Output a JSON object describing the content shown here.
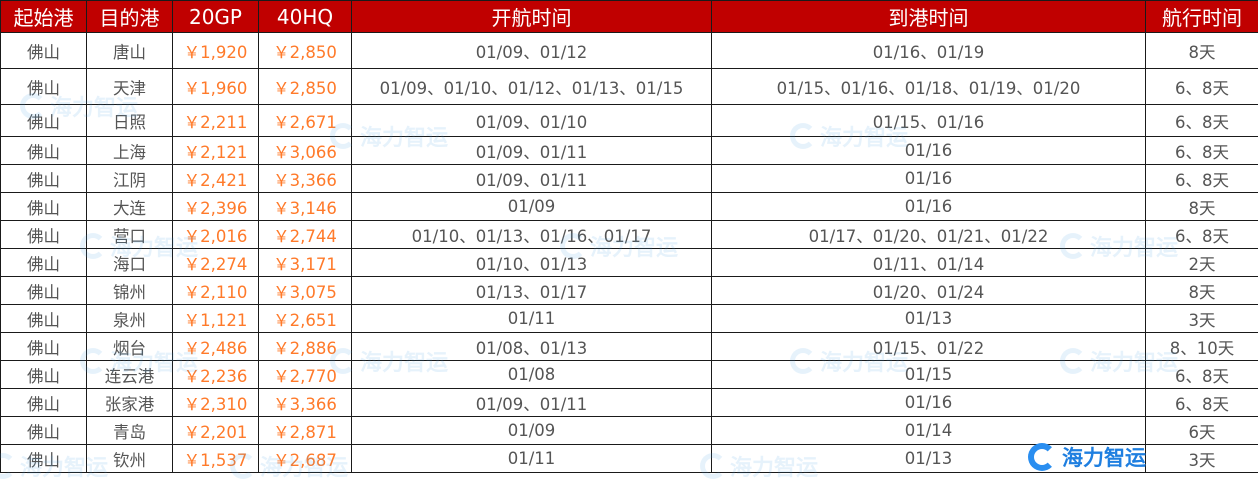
{
  "headers": [
    "起始港",
    "目的港",
    "20GP",
    "40HQ",
    "开航时间",
    "到港时间",
    "航行时间"
  ],
  "rows": [
    [
      "佛山",
      "唐山",
      "￥1,920",
      "￥2,850",
      "01/09、01/12",
      "01/16、01/19",
      "8天"
    ],
    [
      "佛山",
      "天津",
      "￥1,960",
      "￥2,850",
      "01/09、01/10、01/12、01/13、01/15",
      "01/15、01/16、01/18、01/19、01/20",
      "6、8天"
    ],
    [
      "佛山",
      "日照",
      "￥2,211",
      "￥2,671",
      "01/09、01/10",
      "01/15、01/16",
      "6、8天"
    ],
    [
      "佛山",
      "上海",
      "￥2,121",
      "￥3,066",
      "01/09、01/11",
      "01/16",
      "6、8天"
    ],
    [
      "佛山",
      "江阴",
      "￥2,421",
      "￥3,366",
      "01/09、01/11",
      "01/16",
      "6、8天"
    ],
    [
      "佛山",
      "大连",
      "￥2,396",
      "￥3,146",
      "01/09",
      "01/16",
      "8天"
    ],
    [
      "佛山",
      "营口",
      "￥2,016",
      "￥2,744",
      "01/10、01/13、01/16、01/17",
      "01/17、01/20、01/21、01/22",
      "6、8天"
    ],
    [
      "佛山",
      "海口",
      "￥2,274",
      "￥3,171",
      "01/10、01/13",
      "01/11、01/14",
      "2天"
    ],
    [
      "佛山",
      "锦州",
      "￥2,110",
      "￥3,075",
      "01/13、01/17",
      "01/20、01/24",
      "8天"
    ],
    [
      "佛山",
      "泉州",
      "￥1,121",
      "￥2,651",
      "01/11",
      "01/13",
      "3天"
    ],
    [
      "佛山",
      "烟台",
      "￥2,486",
      "￥2,886",
      "01/08、01/13",
      "01/15、01/22",
      "8、10天"
    ],
    [
      "佛山",
      "连云港",
      "￥2,236",
      "￥2,770",
      "01/08",
      "01/15",
      "6、8天"
    ],
    [
      "佛山",
      "张家港",
      "￥2,310",
      "￥3,366",
      "01/09、01/11",
      "01/16",
      "6、8天"
    ],
    [
      "佛山",
      "青岛",
      "￥2,201",
      "￥2,871",
      "01/09",
      "01/14",
      "6天"
    ],
    [
      "佛山",
      "钦州",
      "￥1,537",
      "￥2,687",
      "01/11",
      "01/13",
      "3天"
    ]
  ],
  "logo": {
    "text": "海力智运",
    "color": "#1f7fe0"
  },
  "colors": {
    "header_bg": "#c00000",
    "price": "#ff7a2a",
    "text": "#555555"
  }
}
